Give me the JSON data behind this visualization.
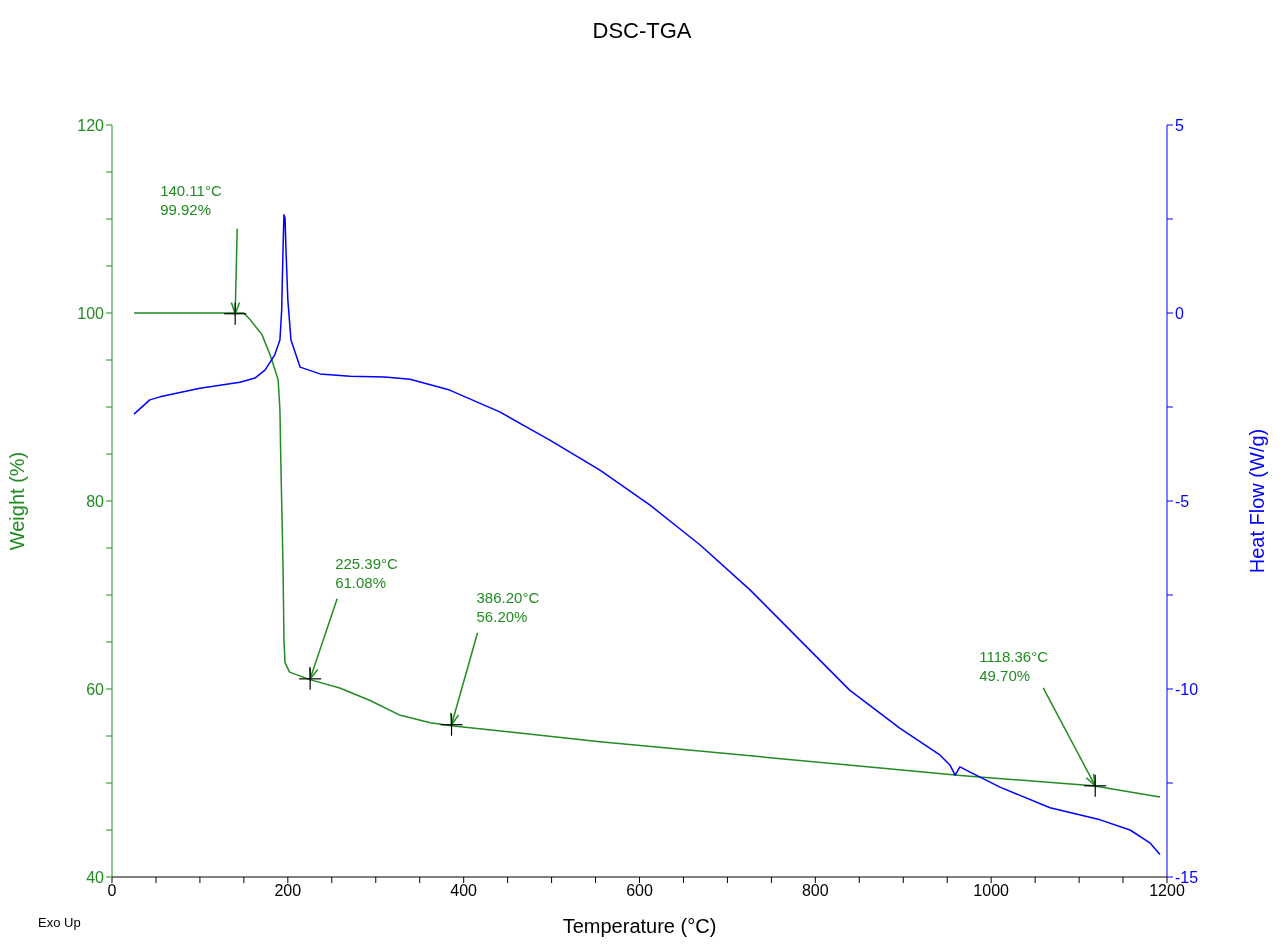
{
  "chart_data": {
    "type": "line",
    "title": "DSC-TGA",
    "xlabel": "Temperature (°C)",
    "ylabel": "Weight (%)",
    "y2label": "Heat Flow (W/g)",
    "xlim": [
      0,
      1200
    ],
    "ylim": [
      40,
      120
    ],
    "y2lim": [
      -15,
      5
    ],
    "xticks": [
      0,
      {
        "value": 50,
        "label": null
      },
      {
        "value": 100,
        "label": null
      },
      {
        "value": 150,
        "label": null
      },
      200,
      {
        "value": 250,
        "label": null
      },
      {
        "value": 300,
        "label": null
      },
      {
        "value": 350,
        "label": null
      },
      400,
      {
        "value": 450,
        "label": null
      },
      {
        "value": 500,
        "label": null
      },
      {
        "value": 550,
        "label": null
      },
      600,
      {
        "value": 650,
        "label": null
      },
      {
        "value": 700,
        "label": null
      },
      {
        "value": 750,
        "label": null
      },
      800,
      {
        "value": 850,
        "label": null
      },
      {
        "value": 900,
        "label": null
      },
      {
        "value": 950,
        "label": null
      },
      1000,
      {
        "value": 1050,
        "label": null
      },
      {
        "value": 1100,
        "label": null
      },
      {
        "value": 1150,
        "label": null
      },
      1200
    ],
    "yticks": [
      40,
      {
        "value": 45,
        "label": null
      },
      {
        "value": 50,
        "label": null
      },
      {
        "value": 55,
        "label": null
      },
      60,
      {
        "value": 65,
        "label": null
      },
      {
        "value": 70,
        "label": null
      },
      {
        "value": 75,
        "label": null
      },
      80,
      {
        "value": 85,
        "label": null
      },
      {
        "value": 90,
        "label": null
      },
      {
        "value": 95,
        "label": null
      },
      100,
      {
        "value": 105,
        "label": null
      },
      {
        "value": 110,
        "label": null
      },
      {
        "value": 115,
        "label": null
      },
      120
    ],
    "y2ticks": [
      -15,
      {
        "value": -12.5,
        "label": null
      },
      -10,
      {
        "value": -7.5,
        "label": null
      },
      -5,
      {
        "value": -2.5,
        "label": null
      },
      0,
      {
        "value": 2.5,
        "label": null
      },
      5
    ],
    "grid": false,
    "legend": false,
    "marker": "none",
    "line_style": "solid",
    "series": [
      {
        "color": "#228b22",
        "x": [
          25,
          150,
          157,
          170.6,
          180,
          189,
          191,
          192,
          194.5,
          195.6,
          196.8,
          202,
          225,
          259,
          293,
          328,
          362,
          386,
          555,
          782,
          965,
          1116,
          1192
        ],
        "values": [
          100,
          100,
          99.3,
          97.7,
          95.5,
          92.9,
          89.7,
          84.4,
          73.2,
          65.2,
          62.8,
          61.8,
          61.0,
          60.1,
          58.8,
          57.2,
          56.4,
          56.1,
          54.4,
          52.4,
          50.8,
          49.7,
          48.5
        ]
      },
      {
        "color": "#0000ff",
        "axis": "y2",
        "x": [
          25,
          43,
          54.6,
          100,
          145.6,
          162.6,
          174,
          185,
          191,
          193,
          194.5,
          195.6,
          196.8,
          197.9,
          200,
          203.6,
          214,
          236.6,
          270.7,
          310,
          339,
          384,
          441,
          498,
          555,
          612,
          669,
          726,
          782.5,
          839,
          896,
          942,
          953,
          959,
          964.5,
          976,
          1010,
          1067,
          1124,
          1158,
          1181,
          1192
        ],
        "values": [
          -2.69,
          -2.31,
          -2.23,
          -2.0,
          -1.84,
          -1.73,
          -1.52,
          -1.12,
          -0.72,
          0.08,
          1.68,
          2.61,
          2.53,
          1.68,
          0.35,
          -0.72,
          -1.44,
          -1.62,
          -1.68,
          -1.7,
          -1.76,
          -2.05,
          -2.63,
          -3.38,
          -4.18,
          -5.11,
          -6.17,
          -7.37,
          -8.7,
          -10.03,
          -11.04,
          -11.76,
          -12.02,
          -12.29,
          -12.07,
          -12.21,
          -12.61,
          -13.16,
          -13.48,
          -13.75,
          -14.1,
          -14.4
        ]
      }
    ],
    "annotations": [
      {
        "text": "140.11°C\n99.92%",
        "x": 140.11,
        "y": 99.92
      },
      {
        "text": "225.39°C\n61.08%",
        "x": 225.39,
        "y": 61.08
      },
      {
        "text": "386.20°C\n56.20%",
        "x": 386.2,
        "y": 56.2
      },
      {
        "text": "1118.36°C\n49.70%",
        "x": 1118.36,
        "y": 49.7
      },
      "Exo Up"
    ]
  }
}
